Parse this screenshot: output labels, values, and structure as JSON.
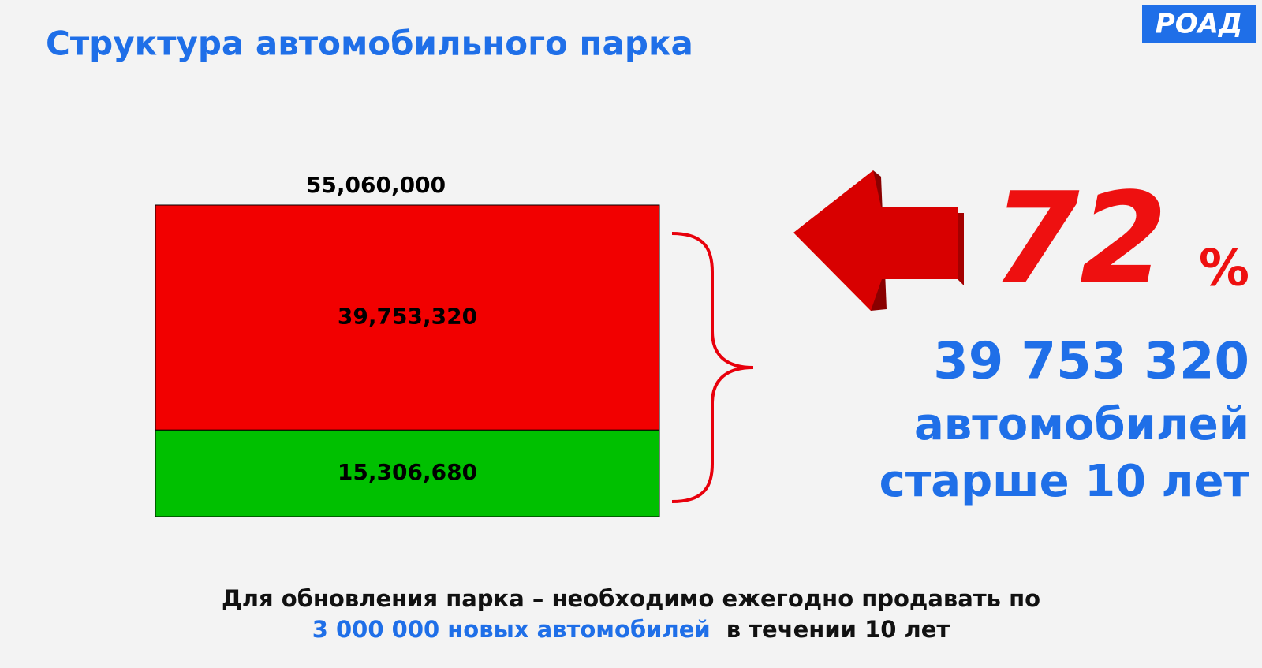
{
  "title": "Структура автомобильного парка",
  "logo": "РОАД",
  "highlight": {
    "share": "72",
    "share_unit": "%",
    "count": "39 753 320",
    "caption": [
      "автомобилей",
      "старше 10 лет"
    ]
  },
  "footer": {
    "line1": "Для обновления парка – необходимо ежегодно продавать по",
    "line2_highlight": "3 000 000 новых автомобилей",
    "line2_rest": "в течении 10 лет"
  },
  "chart_data": {
    "type": "bar",
    "stacked": true,
    "categories": [
      null
    ],
    "series": [
      {
        "color": "#00c000",
        "values": [
          15306680
        ],
        "value_labels": [
          "15,306,680"
        ]
      },
      {
        "color": "#f20000",
        "values": [
          39753320
        ],
        "value_labels": [
          "39,753,320"
        ]
      }
    ],
    "total": {
      "value": 55060000,
      "label": "55,060,000"
    },
    "ylim": [
      0,
      55060000
    ]
  }
}
